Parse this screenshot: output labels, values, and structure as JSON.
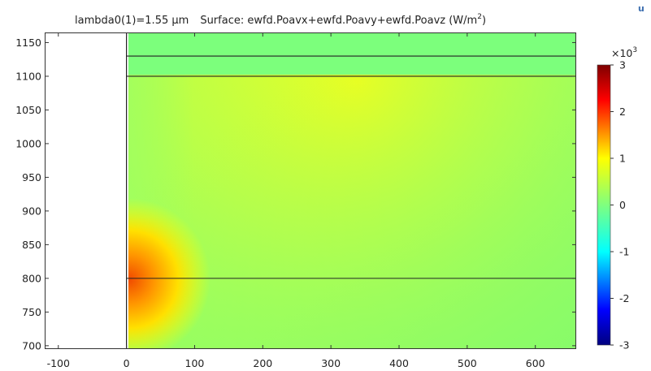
{
  "title": {
    "prefix": "lambda0(1)=1.55 µm",
    "surface": "Surface: ewfd.Poavx+ewfd.Poavy+ewfd.Poavz (W/m",
    "exponent": "2",
    "close": ")"
  },
  "colorbar": {
    "multiplier_base": "×10",
    "multiplier_exp": "3",
    "range": [
      -3,
      3
    ],
    "ticks": [
      "3",
      "2",
      "1",
      "0",
      "-1",
      "-2",
      "-3"
    ],
    "colormap": [
      "#00007f",
      "#0000ff",
      "#00ffff",
      "#7fff7f",
      "#ffff00",
      "#ff0000",
      "#7f0000"
    ]
  },
  "chart_data": {
    "type": "heatmap",
    "title": "lambda0(1)=1.55 µm   Surface: ewfd.Poavx+ewfd.Poavy+ewfd.Poavz (W/m²)",
    "xlabel": "",
    "ylabel": "",
    "xlim": [
      -120,
      660
    ],
    "ylim": [
      695,
      1165
    ],
    "x_ticks": [
      -100,
      0,
      100,
      200,
      300,
      400,
      500,
      600
    ],
    "y_ticks": [
      700,
      750,
      800,
      850,
      900,
      950,
      1000,
      1050,
      1100,
      1150
    ],
    "domain": {
      "x": [
        0,
        660
      ],
      "y": [
        695,
        1165
      ]
    },
    "boundary_lines_y": [
      800,
      1100,
      1130
    ],
    "boundary_line_x": 0,
    "field_units": "W/m²",
    "field_scale": 1000,
    "color_range": [
      -3,
      3
    ],
    "field_samples": [
      {
        "x": 10,
        "y": 790,
        "value": 1.8
      },
      {
        "x": 60,
        "y": 790,
        "value": 1.0
      },
      {
        "x": 150,
        "y": 1075,
        "value": 0.75
      },
      {
        "x": 350,
        "y": 1075,
        "value": 0.85
      },
      {
        "x": 350,
        "y": 900,
        "value": 0.5
      },
      {
        "x": 600,
        "y": 1075,
        "value": 0.55
      },
      {
        "x": 600,
        "y": 750,
        "value": 0.15
      },
      {
        "x": 300,
        "y": 1145,
        "value": 0.1
      }
    ]
  },
  "corner_mark": "u"
}
